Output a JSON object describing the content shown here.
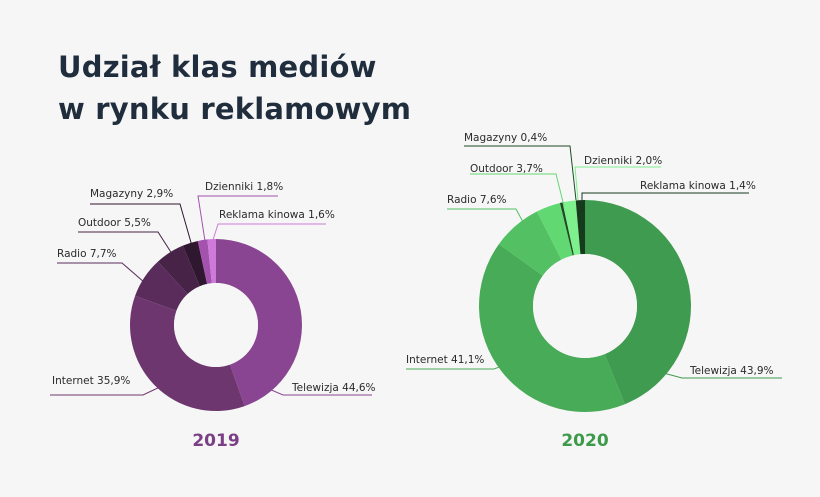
{
  "title": {
    "line1": "Udział klas mediów",
    "line2": "w rynku reklamowym"
  },
  "chart_data": [
    {
      "type": "pie",
      "title": "2019",
      "title_color": "#7b3f86",
      "slices": [
        {
          "label": "Telewizja 44,6%",
          "value": 44.6,
          "color": "#8a4592"
        },
        {
          "label": "Internet 35,9%",
          "value": 35.9,
          "color": "#6e366f"
        },
        {
          "label": "Radio 7,7%",
          "value": 7.7,
          "color": "#5a2c5c"
        },
        {
          "label": "Outdoor 5,5%",
          "value": 5.5,
          "color": "#472348"
        },
        {
          "label": "Magazyny 2,9%",
          "value": 2.9,
          "color": "#2f1730"
        },
        {
          "label": "Dzienniki 1,8%",
          "value": 1.8,
          "color": "#a353ae"
        },
        {
          "label": "Reklama kinowa 1,6%",
          "value": 1.6,
          "color": "#cd7ad8"
        }
      ]
    },
    {
      "type": "pie",
      "title": "2020",
      "title_color": "#3d9a4a",
      "slices": [
        {
          "label": "Telewizja 43,9%",
          "value": 43.9,
          "color": "#3f9b4f"
        },
        {
          "label": "Internet 41,1%",
          "value": 41.1,
          "color": "#48ab58"
        },
        {
          "label": "Radio 7,6%",
          "value": 7.6,
          "color": "#52c063"
        },
        {
          "label": "Outdoor 3,7%",
          "value": 3.7,
          "color": "#62d873"
        },
        {
          "label": "Magazyny 0,4%",
          "value": 0.4,
          "color": "#1e4a24"
        },
        {
          "label": "Dzienniki 2,0%",
          "value": 2.0,
          "color": "#7ef08c"
        },
        {
          "label": "Reklama kinowa 1,4%",
          "value": 1.4,
          "color": "#163a1c"
        }
      ]
    }
  ]
}
